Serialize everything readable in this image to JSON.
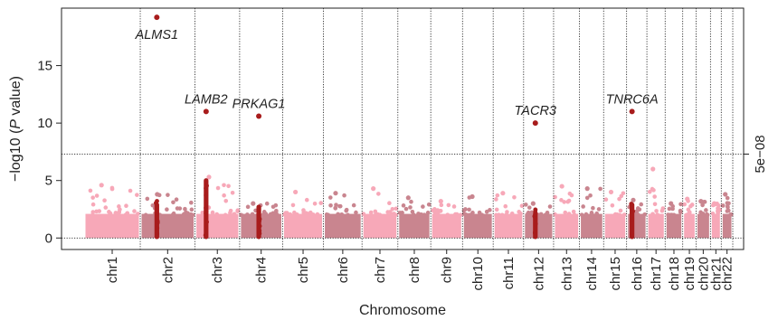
{
  "chart_data": {
    "type": "scatter",
    "title": "",
    "xlabel": "Chromosome",
    "ylabel_parts": [
      "−log10 (",
      "P",
      " value)"
    ],
    "ylim": [
      -1,
      20
    ],
    "yticks": [
      0,
      5,
      10,
      15
    ],
    "threshold": {
      "value": 7.3,
      "label": "5e−08"
    },
    "chromosomes": [
      {
        "name": "chr1",
        "start": 0,
        "end": 249
      },
      {
        "name": "chr2",
        "start": 249,
        "end": 492
      },
      {
        "name": "chr3",
        "start": 492,
        "end": 690
      },
      {
        "name": "chr4",
        "start": 690,
        "end": 881
      },
      {
        "name": "chr5",
        "start": 881,
        "end": 1062
      },
      {
        "name": "chr6",
        "start": 1062,
        "end": 1233
      },
      {
        "name": "chr7",
        "start": 1233,
        "end": 1392
      },
      {
        "name": "chr8",
        "start": 1392,
        "end": 1538
      },
      {
        "name": "chr9",
        "start": 1538,
        "end": 1679
      },
      {
        "name": "chr10",
        "start": 1679,
        "end": 1815
      },
      {
        "name": "chr11",
        "start": 1815,
        "end": 1950
      },
      {
        "name": "chr12",
        "start": 1950,
        "end": 2083
      },
      {
        "name": "chr13",
        "start": 2083,
        "end": 2198
      },
      {
        "name": "chr14",
        "start": 2198,
        "end": 2305
      },
      {
        "name": "chr15",
        "start": 2305,
        "end": 2407
      },
      {
        "name": "chr16",
        "start": 2407,
        "end": 2497
      },
      {
        "name": "chr17",
        "start": 2497,
        "end": 2578
      },
      {
        "name": "chr18",
        "start": 2578,
        "end": 2656
      },
      {
        "name": "chr19",
        "start": 2656,
        "end": 2715
      },
      {
        "name": "chr20",
        "start": 2715,
        "end": 2779
      },
      {
        "name": "chr21",
        "start": 2779,
        "end": 2827
      },
      {
        "name": "chr22",
        "start": 2827,
        "end": 2878
      }
    ],
    "background_series": [
      {
        "chr": "chr1",
        "max": 4.6
      },
      {
        "chr": "chr2",
        "max": 3.8
      },
      {
        "chr": "chr3",
        "max": 5.3
      },
      {
        "chr": "chr4",
        "max": 3.0
      },
      {
        "chr": "chr5",
        "max": 4.0
      },
      {
        "chr": "chr6",
        "max": 3.9
      },
      {
        "chr": "chr7",
        "max": 4.3
      },
      {
        "chr": "chr8",
        "max": 3.5
      },
      {
        "chr": "chr9",
        "max": 3.2
      },
      {
        "chr": "chr10",
        "max": 3.6
      },
      {
        "chr": "chr11",
        "max": 3.9
      },
      {
        "chr": "chr12",
        "max": 3.0
      },
      {
        "chr": "chr13",
        "max": 4.5
      },
      {
        "chr": "chr14",
        "max": 4.3
      },
      {
        "chr": "chr15",
        "max": 4.0
      },
      {
        "chr": "chr16",
        "max": 3.3
      },
      {
        "chr": "chr17",
        "max": 6.0
      },
      {
        "chr": "chr18",
        "max": 3.0
      },
      {
        "chr": "chr19",
        "max": 3.4
      },
      {
        "chr": "chr20",
        "max": 3.2
      },
      {
        "chr": "chr21",
        "max": 3.0
      },
      {
        "chr": "chr22",
        "max": 3.8
      }
    ],
    "highlighted_genes": [
      {
        "gene": "ALMS1",
        "chr": "chr2",
        "pos": 73.5,
        "y": 19.2,
        "region_max": 3.1
      },
      {
        "gene": "LAMB2",
        "chr": "chr3",
        "pos": 49.2,
        "y": 11.0,
        "region_max": 5.2
      },
      {
        "gene": "PRKAG1",
        "chr": "chr12",
        "pos": 49.0,
        "y": 10.6,
        "region_max": 2.9,
        "label_anchor_chr": "chr4",
        "label_anchor_pos": 85.0
      },
      {
        "gene": "TACR3",
        "chr": "chr4",
        "pos": 103.6,
        "y": 10.0,
        "region_max": 2.3,
        "label_anchor_chr": "chr12",
        "label_anchor_pos": 52.0
      },
      {
        "gene": "TNRC6A",
        "chr": "chr16",
        "pos": 24.0,
        "y": 11.0,
        "region_max": 3.1
      }
    ],
    "colors": {
      "light": "#f7a8b8",
      "dark": "#c9858f",
      "highlight": "#a81c1c",
      "threshold_line": "#222222"
    }
  }
}
